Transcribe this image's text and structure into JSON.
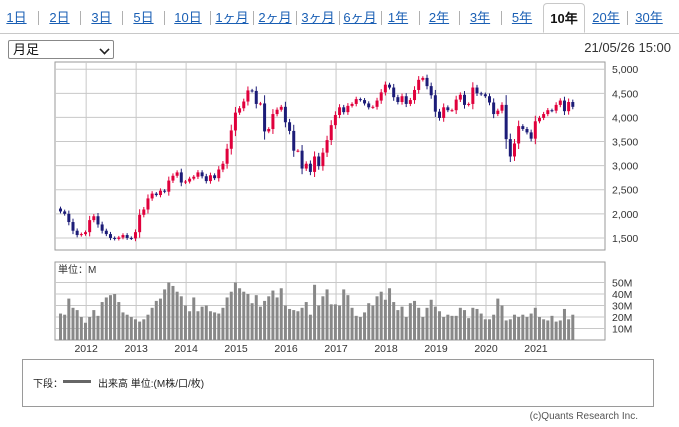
{
  "tabs": [
    {
      "label": "1日"
    },
    {
      "label": "2日"
    },
    {
      "label": "3日"
    },
    {
      "label": "5日"
    },
    {
      "label": "10日"
    },
    {
      "label": "1ヶ月"
    },
    {
      "label": "2ヶ月"
    },
    {
      "label": "3ヶ月"
    },
    {
      "label": "6ヶ月"
    },
    {
      "label": "1年"
    },
    {
      "label": "2年"
    },
    {
      "label": "3年"
    },
    {
      "label": "5年"
    },
    {
      "label": "10年",
      "active": true
    },
    {
      "label": "20年"
    },
    {
      "label": "30年"
    }
  ],
  "period_select": {
    "value": "月足"
  },
  "datestamp": "21/05/26 15:00",
  "legend": {
    "lower_label": "下段：",
    "series_text": "出来高 単位:(M株/口/枚)"
  },
  "copyright": "(c)Quants Research Inc.",
  "colors": {
    "up": "#e0003c",
    "down": "#1c1c78",
    "volume": "#888888",
    "grid": "#c8c8c8"
  },
  "chart_data": [
    {
      "type": "candlestick",
      "x_axis": {
        "labels": [
          "2012",
          "2013",
          "2014",
          "2015",
          "2016",
          "2017",
          "2018",
          "2019",
          "2020",
          "2021"
        ]
      },
      "y_axis": {
        "ticks": [
          1500,
          2000,
          2500,
          3000,
          3500,
          4000,
          4500,
          5000
        ],
        "tick_labels": [
          "1,500",
          "2,000",
          "2,500",
          "3,000",
          "3,500",
          "4,000",
          "4,500",
          "5,000"
        ],
        "range": [
          1250,
          5150
        ]
      },
      "start": "2011-06",
      "series": {
        "close": [
          2050,
          2000,
          1830,
          1650,
          1560,
          1580,
          1620,
          1870,
          1950,
          1780,
          1650,
          1580,
          1500,
          1480,
          1510,
          1560,
          1500,
          1490,
          1620,
          1980,
          2090,
          2320,
          2420,
          2390,
          2480,
          2460,
          2690,
          2790,
          2860,
          2650,
          2670,
          2730,
          2770,
          2860,
          2780,
          2680,
          2800,
          2740,
          2920,
          3040,
          3350,
          3730,
          4100,
          4190,
          4330,
          4560,
          4550,
          4280,
          4290,
          3710,
          3760,
          4070,
          4160,
          4220,
          3900,
          3720,
          3310,
          3310,
          2940,
          3040,
          2870,
          3190,
          2990,
          3270,
          3530,
          3840,
          4050,
          4210,
          4110,
          4240,
          4280,
          4380,
          4360,
          4290,
          4210,
          4220,
          4350,
          4520,
          4680,
          4620,
          4420,
          4320,
          4440,
          4280,
          4360,
          4570,
          4780,
          4820,
          4650,
          4460,
          4120,
          3990,
          4210,
          4150,
          4150,
          4370,
          4470,
          4260,
          4280,
          4620,
          4500,
          4480,
          4440,
          4310,
          4070,
          4140,
          4260,
          3550,
          3190,
          3460,
          3820,
          3760,
          3690,
          3560,
          3920,
          3990,
          4070,
          4150,
          4140,
          4260,
          4350,
          4130,
          4320,
          4220
        ],
        "volume_m": [
          23,
          22,
          36,
          28,
          26,
          20,
          15,
          20,
          26,
          21,
          33,
          37,
          39,
          40,
          33,
          24,
          22,
          20,
          18,
          16,
          18,
          22,
          28,
          34,
          36,
          44,
          50,
          47,
          42,
          38,
          30,
          25,
          37,
          25,
          29,
          30,
          25,
          24,
          23,
          28,
          37,
          42,
          50,
          45,
          42,
          40,
          32,
          39,
          29,
          34,
          38,
          43,
          37,
          45,
          30,
          27,
          26,
          25,
          28,
          33,
          22,
          48,
          30,
          38,
          44,
          31,
          31,
          30,
          44,
          39,
          28,
          21,
          20,
          24,
          32,
          30,
          38,
          42,
          35,
          45,
          33,
          26,
          29,
          20,
          32,
          34,
          28,
          20,
          28,
          35,
          29,
          25,
          20,
          22,
          21,
          21,
          28,
          26,
          19,
          28,
          27,
          23,
          18,
          18,
          22,
          36,
          30,
          17,
          18,
          22,
          20,
          22,
          20,
          23,
          28,
          20,
          18,
          17,
          21,
          16,
          17,
          27,
          18,
          22
        ]
      }
    },
    {
      "type": "bar",
      "y_axis": {
        "ticks": [
          10,
          20,
          30,
          40,
          50
        ],
        "tick_labels": [
          "10M",
          "20M",
          "30M",
          "40M",
          "50M"
        ]
      },
      "unit_label": "単位：M"
    }
  ]
}
